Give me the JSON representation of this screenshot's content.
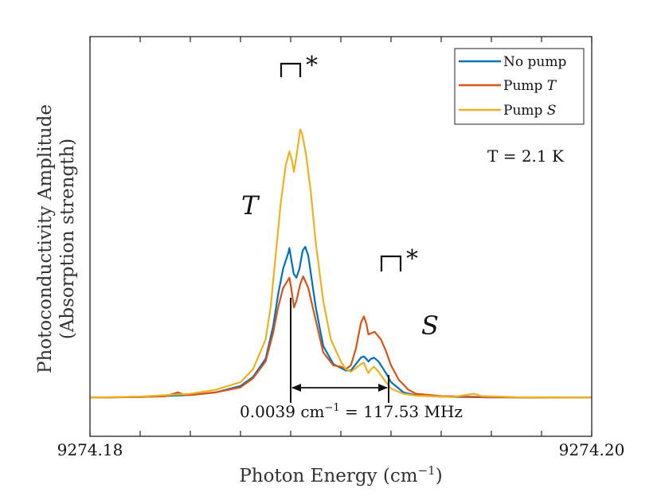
{
  "chart_data": {
    "type": "line",
    "title": "",
    "xlabel": "Photon Energy (cm",
    "xlabel_sup": "−1",
    "xlabel_end": ")",
    "ylabel_line1": "Photoconductivity Amplitude",
    "ylabel_line2": "(Absorption strength)",
    "xlim": [
      9274.18,
      9274.2
    ],
    "ylim": [
      -0.03,
      0.28
    ],
    "x_tick_labels": [
      "9274.18",
      "9274.20"
    ],
    "x_ticks": [
      9274.18,
      9274.182,
      9274.184,
      9274.186,
      9274.188,
      9274.19,
      9274.192,
      9274.194,
      9274.196,
      9274.198,
      9274.2
    ],
    "grid": false,
    "legend_position": "top-right",
    "series": [
      {
        "name": "No pump",
        "color": "#0072BD",
        "points": [
          [
            9274.18,
            0.0
          ],
          [
            9274.182,
            0.0005
          ],
          [
            9274.184,
            0.002
          ],
          [
            9274.185,
            0.004
          ],
          [
            9274.186,
            0.009
          ],
          [
            9274.1865,
            0.016
          ],
          [
            9274.187,
            0.03
          ],
          [
            9274.1873,
            0.055
          ],
          [
            9274.1875,
            0.08
          ],
          [
            9274.1877,
            0.1
          ],
          [
            9274.1879,
            0.112
          ],
          [
            9274.18795,
            0.116
          ],
          [
            9274.188,
            0.11
          ],
          [
            9274.18812,
            0.096
          ],
          [
            9274.18823,
            0.093
          ],
          [
            9274.18835,
            0.1
          ],
          [
            9274.18848,
            0.114
          ],
          [
            9274.18858,
            0.117
          ],
          [
            9274.1887,
            0.11
          ],
          [
            9274.189,
            0.07
          ],
          [
            9274.1893,
            0.04
          ],
          [
            9274.1897,
            0.026
          ],
          [
            9274.19,
            0.023
          ],
          [
            9274.1902,
            0.021
          ],
          [
            9274.1904,
            0.021
          ],
          [
            9274.1906,
            0.026
          ],
          [
            9274.1908,
            0.031
          ],
          [
            9274.19092,
            0.032
          ],
          [
            9274.19102,
            0.03
          ],
          [
            9274.1911,
            0.028
          ],
          [
            9274.1912,
            0.03
          ],
          [
            9274.19132,
            0.031
          ],
          [
            9274.1915,
            0.028
          ],
          [
            9274.1918,
            0.019
          ],
          [
            9274.192,
            0.012
          ],
          [
            9274.1925,
            0.004
          ],
          [
            9274.193,
            0.0018
          ],
          [
            9274.194,
            0.0007
          ],
          [
            9274.196,
            0.0002
          ],
          [
            9274.198,
            0.0
          ],
          [
            9274.2,
            0.0
          ]
        ]
      },
      {
        "name": "Pump T",
        "color": "#D95319",
        "points": [
          [
            9274.18,
            0.0
          ],
          [
            9274.182,
            0.0005
          ],
          [
            9274.183,
            0.001
          ],
          [
            9274.1835,
            0.004
          ],
          [
            9274.1838,
            0.002
          ],
          [
            9274.184,
            0.002
          ],
          [
            9274.185,
            0.004
          ],
          [
            9274.186,
            0.008
          ],
          [
            9274.1865,
            0.015
          ],
          [
            9274.187,
            0.028
          ],
          [
            9274.1873,
            0.05
          ],
          [
            9274.1875,
            0.07
          ],
          [
            9274.1877,
            0.085
          ],
          [
            9274.18795,
            0.093
          ],
          [
            9274.18802,
            0.085
          ],
          [
            9274.18813,
            0.07
          ],
          [
            9274.18823,
            0.075
          ],
          [
            9274.18838,
            0.088
          ],
          [
            9274.1885,
            0.094
          ],
          [
            9274.1887,
            0.085
          ],
          [
            9274.189,
            0.06
          ],
          [
            9274.1893,
            0.035
          ],
          [
            9274.1897,
            0.025
          ],
          [
            9274.19,
            0.024
          ],
          [
            9274.1902,
            0.022
          ],
          [
            9274.1904,
            0.025
          ],
          [
            9274.1906,
            0.038
          ],
          [
            9274.1908,
            0.058
          ],
          [
            9274.19092,
            0.063
          ],
          [
            9274.19102,
            0.057
          ],
          [
            9274.1911,
            0.049
          ],
          [
            9274.19122,
            0.05
          ],
          [
            9274.19135,
            0.051
          ],
          [
            9274.1916,
            0.045
          ],
          [
            9274.1918,
            0.036
          ],
          [
            9274.192,
            0.025
          ],
          [
            9274.1923,
            0.014
          ],
          [
            9274.1927,
            0.006
          ],
          [
            9274.193,
            0.003
          ],
          [
            9274.194,
            0.0012
          ],
          [
            9274.196,
            0.0003
          ],
          [
            9274.198,
            0.0
          ],
          [
            9274.2,
            0.0
          ]
        ]
      },
      {
        "name": "Pump S",
        "color": "#EDB120",
        "points": [
          [
            9274.18,
            0.0
          ],
          [
            9274.182,
            0.0008
          ],
          [
            9274.184,
            0.003
          ],
          [
            9274.185,
            0.006
          ],
          [
            9274.186,
            0.012
          ],
          [
            9274.1865,
            0.022
          ],
          [
            9274.187,
            0.045
          ],
          [
            9274.1872,
            0.07
          ],
          [
            9274.1874,
            0.11
          ],
          [
            9274.1876,
            0.15
          ],
          [
            9274.1878,
            0.18
          ],
          [
            9274.18795,
            0.191
          ],
          [
            9274.18805,
            0.184
          ],
          [
            9274.18813,
            0.175
          ],
          [
            9274.18825,
            0.19
          ],
          [
            9274.18838,
            0.208
          ],
          [
            9274.18845,
            0.205
          ],
          [
            9274.1886,
            0.19
          ],
          [
            9274.1888,
            0.16
          ],
          [
            9274.189,
            0.12
          ],
          [
            9274.1893,
            0.075
          ],
          [
            9274.1896,
            0.045
          ],
          [
            9274.19,
            0.028
          ],
          [
            9274.1902,
            0.022
          ],
          [
            9274.1904,
            0.02
          ],
          [
            9274.1906,
            0.023
          ],
          [
            9274.1908,
            0.026
          ],
          [
            9274.19092,
            0.027
          ],
          [
            9274.19102,
            0.022
          ],
          [
            9274.1911,
            0.019
          ],
          [
            9274.1912,
            0.022
          ],
          [
            9274.19132,
            0.024
          ],
          [
            9274.1915,
            0.02
          ],
          [
            9274.1918,
            0.012
          ],
          [
            9274.192,
            0.007
          ],
          [
            9274.1925,
            0.003
          ],
          [
            9274.193,
            0.0015
          ],
          [
            9274.1945,
            0.0005
          ],
          [
            9274.1953,
            0.003
          ],
          [
            9274.1956,
            0.0012
          ],
          [
            9274.197,
            0.0003
          ],
          [
            9274.2,
            0.0
          ]
        ]
      }
    ]
  },
  "legend": {
    "items": [
      {
        "text": "No pump",
        "italic": ""
      },
      {
        "text": "Pump ",
        "italic": "T"
      },
      {
        "text": "Pump ",
        "italic": "S"
      }
    ]
  },
  "annotations": {
    "temperature": "T = 2.1 K",
    "peak_T_label": "T",
    "peak_S_label": "S",
    "star": "*",
    "splitting_value": "0.0039 cm",
    "splitting_sup": "−1",
    "splitting_rest": " = 117.53 MHz"
  }
}
